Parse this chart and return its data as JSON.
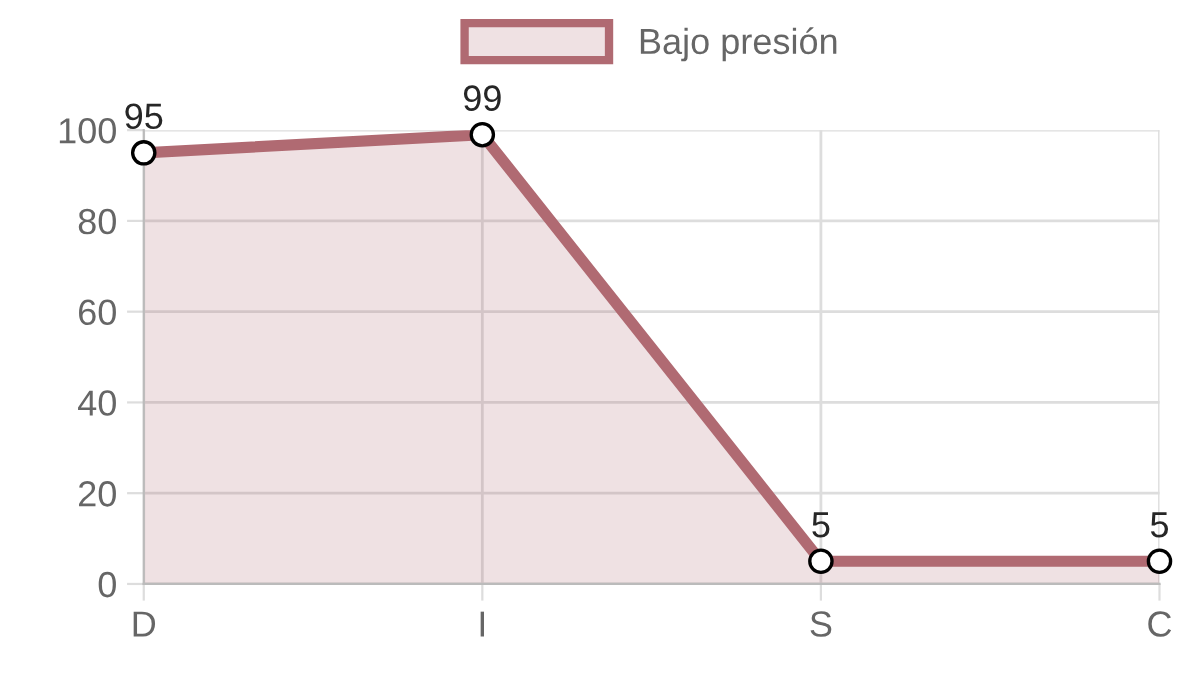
{
  "chart_data": {
    "type": "area",
    "categories": [
      "D",
      "I",
      "S",
      "C"
    ],
    "series": [
      {
        "name": "Bajo presión",
        "color": "#b06a72",
        "values": [
          95,
          99,
          5,
          5
        ]
      }
    ],
    "ylim": [
      0,
      100
    ],
    "yticks": [
      0,
      20,
      40,
      60,
      80,
      100
    ],
    "grid": true,
    "legend": "top",
    "marker": "circle",
    "data_labels": true
  }
}
